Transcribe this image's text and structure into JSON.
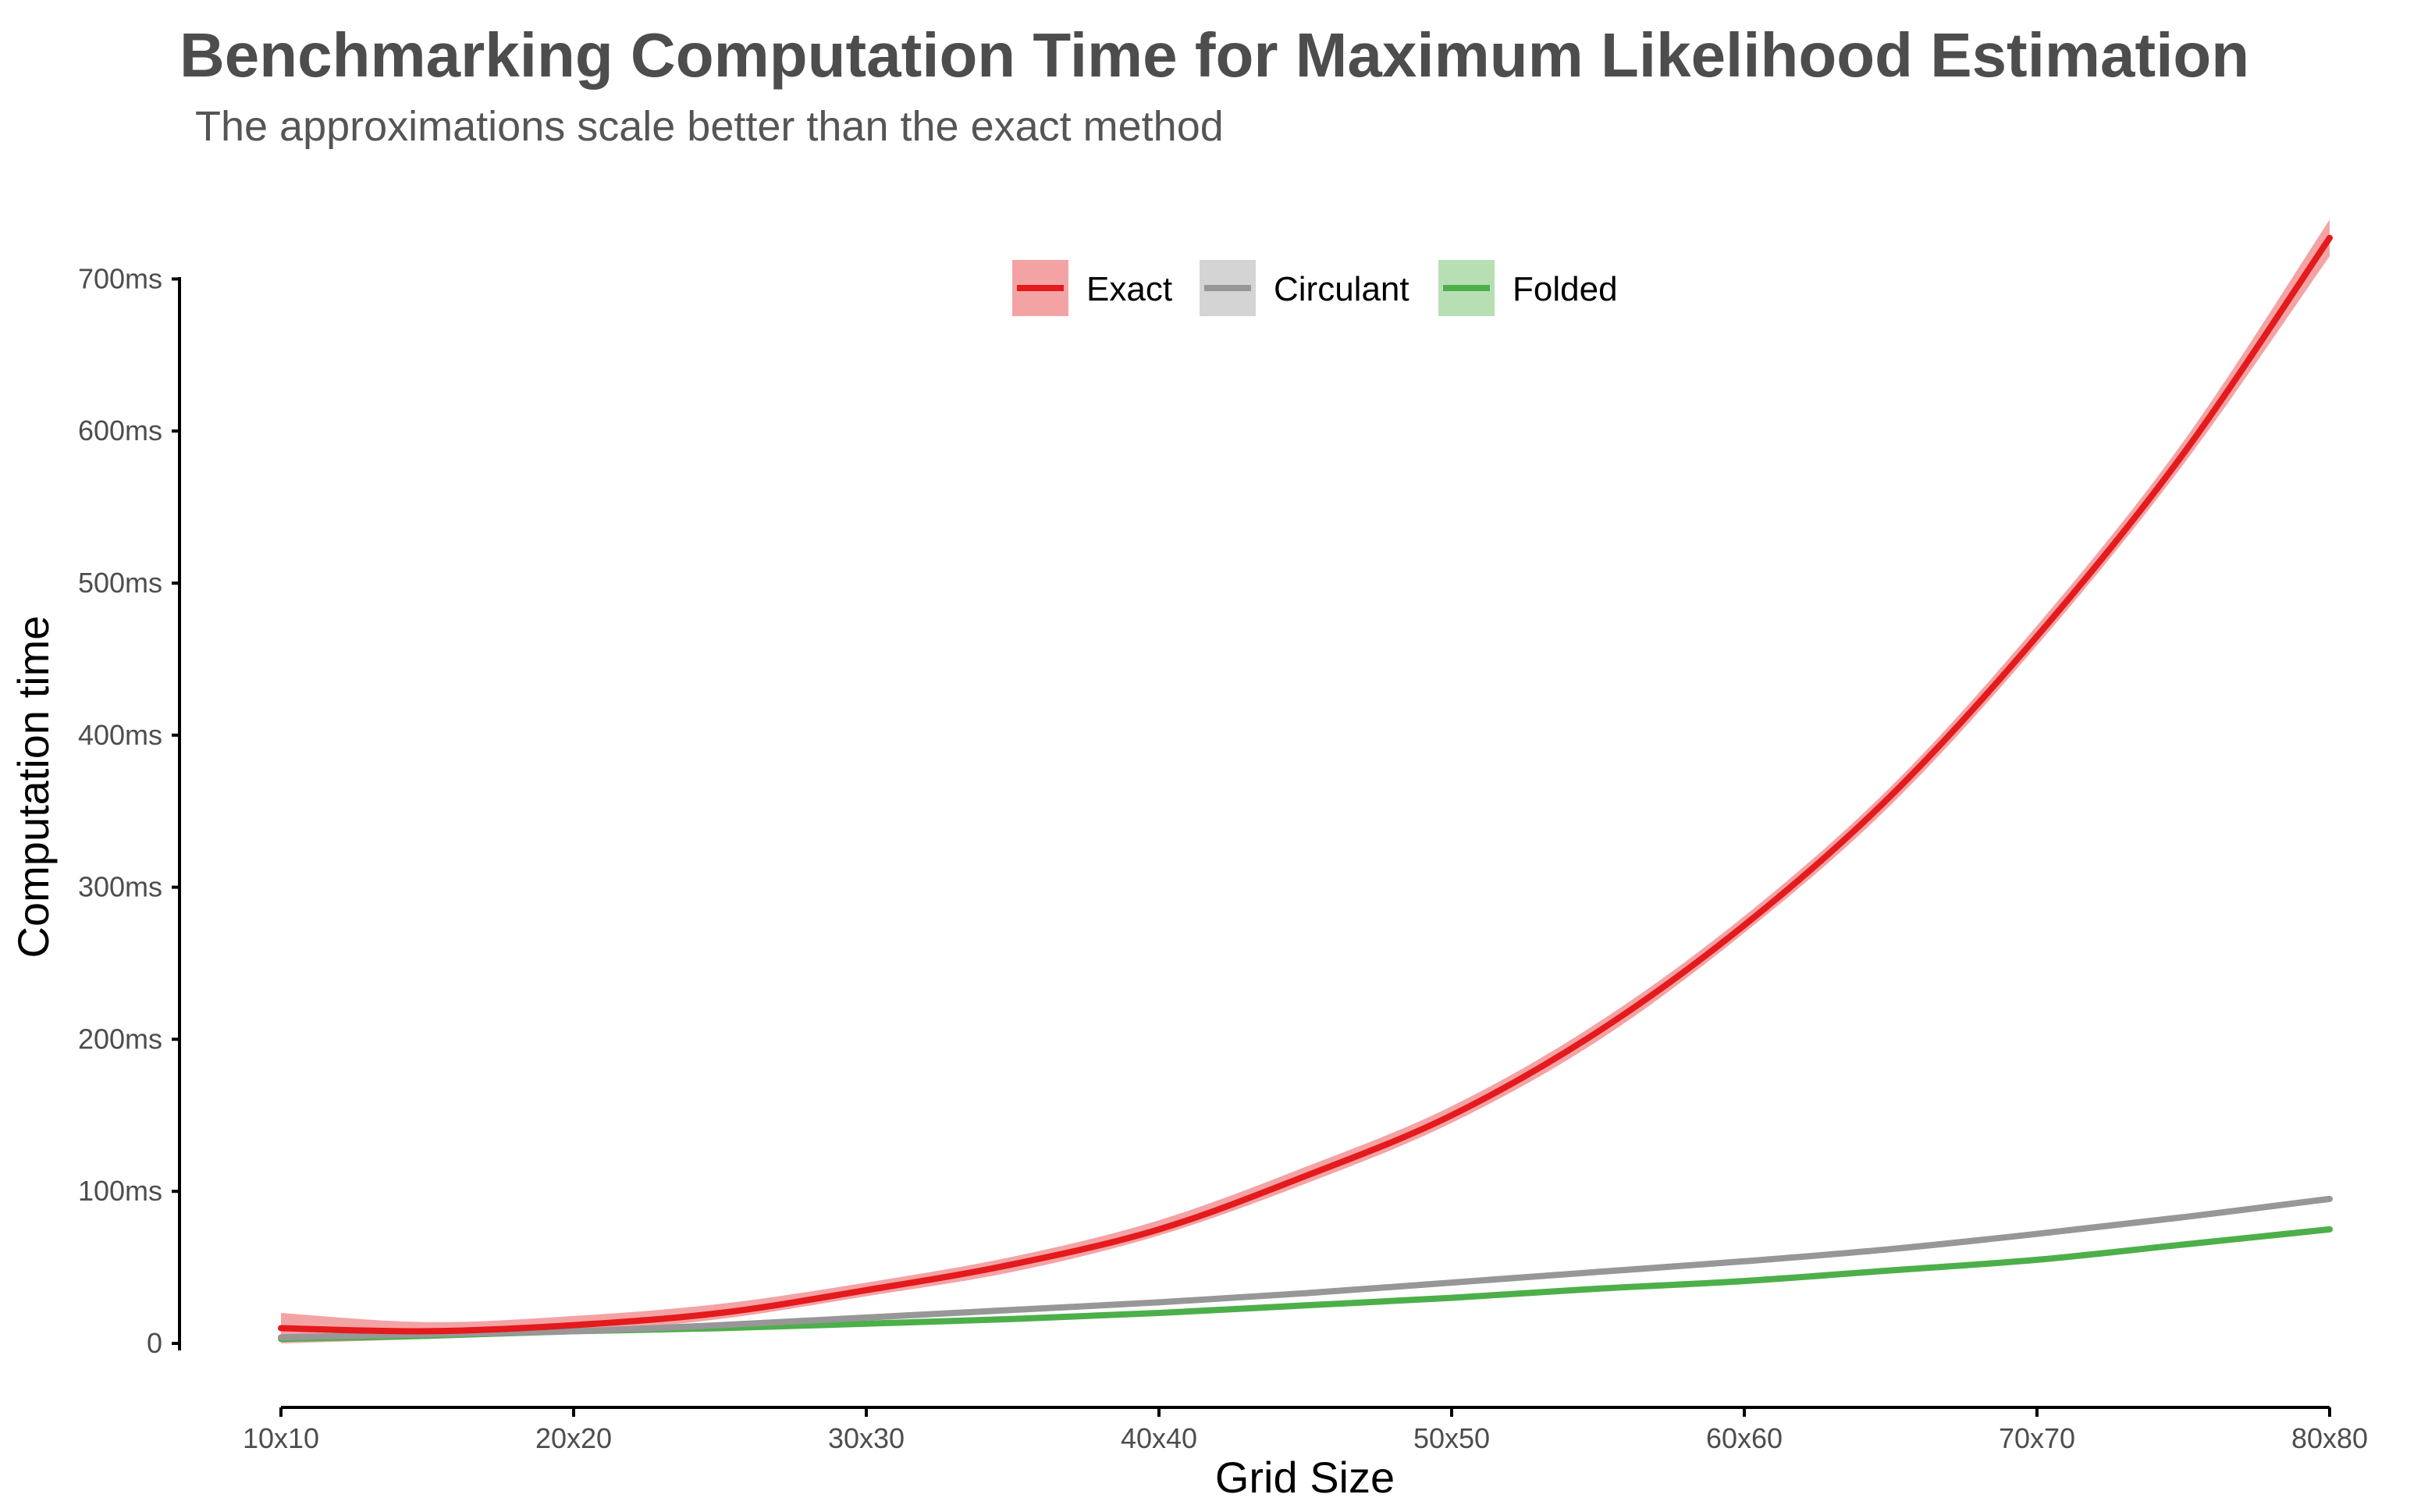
{
  "chart_data": {
    "type": "line",
    "title": "Benchmarking Computation Time for Maximum Likelihood Estimation",
    "subtitle": "The approximations scale better than the exact method",
    "xlabel": "Grid Size",
    "ylabel": "Computation time",
    "x": [
      10,
      15,
      20,
      25,
      30,
      35,
      40,
      45,
      50,
      55,
      60,
      65,
      70,
      75,
      80
    ],
    "x_tick_values": [
      10,
      20,
      30,
      40,
      50,
      60,
      70,
      80
    ],
    "x_tick_labels": [
      "10x10",
      "20x20",
      "30x30",
      "40x40",
      "50x50",
      "60x60",
      "70x70",
      "80x80"
    ],
    "y_tick_values": [
      0,
      100,
      200,
      300,
      400,
      500,
      600,
      700
    ],
    "y_tick_labels": [
      "0",
      "100ms",
      "200ms",
      "300ms",
      "400ms",
      "500ms",
      "600ms",
      "700ms"
    ],
    "xlim": [
      10,
      80
    ],
    "ylim": [
      -30,
      740
    ],
    "grid": false,
    "legend_position": "top-center",
    "series": [
      {
        "name": "Exact",
        "color": "#e41a1c",
        "band_color": "#f4a3a5",
        "values": [
          10,
          8,
          12,
          20,
          35,
          52,
          75,
          110,
          150,
          205,
          275,
          360,
          465,
          585,
          727
        ],
        "lower": [
          0,
          3,
          7,
          16,
          31,
          47,
          71,
          105,
          145,
          199,
          270,
          354,
          459,
          578,
          715
        ],
        "upper": [
          20,
          14,
          18,
          26,
          40,
          57,
          81,
          116,
          156,
          211,
          281,
          366,
          472,
          593,
          739
        ]
      },
      {
        "name": "Circulant",
        "color": "#979797",
        "band_color": "#d4d4d4",
        "values": [
          4,
          6,
          8,
          12,
          17,
          22,
          27,
          33,
          40,
          47,
          54,
          62,
          72,
          83,
          95
        ]
      },
      {
        "name": "Folded",
        "color": "#4daf4a",
        "band_color": "#b6e0b4",
        "values": [
          3,
          5,
          8,
          10,
          13,
          16,
          20,
          25,
          30,
          36,
          41,
          48,
          55,
          65,
          75
        ]
      }
    ]
  }
}
